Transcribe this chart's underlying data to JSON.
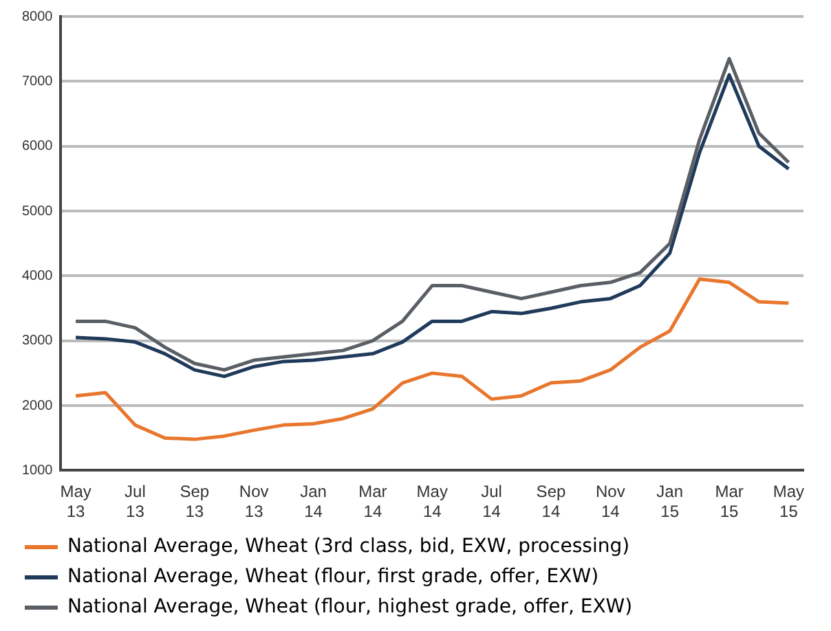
{
  "chart_data": {
    "type": "line",
    "categories": [
      "May 13",
      null,
      "Jul 13",
      null,
      "Sep 13",
      null,
      "Nov 13",
      null,
      "Jan 14",
      null,
      "Mar 14",
      null,
      "May 14",
      null,
      "Jul 14",
      null,
      "Sep 14",
      null,
      "Nov 14",
      null,
      "Jan 15",
      null,
      "Mar 15",
      null,
      "May 15"
    ],
    "ylim": [
      1000,
      8000
    ],
    "yticks": [
      1000,
      2000,
      3000,
      4000,
      5000,
      6000,
      7000,
      8000
    ],
    "grid": "y",
    "legend": "bottom",
    "marker": "none",
    "line_style": "solid",
    "series": [
      {
        "name": "National Average, Wheat (3rd class, bid, EXW, processing)",
        "color": "#e8762d",
        "values": [
          2150,
          2200,
          1700,
          1500,
          1480,
          1530,
          1620,
          1700,
          1720,
          1800,
          1950,
          2350,
          2500,
          2450,
          2100,
          2150,
          2350,
          2380,
          2550,
          2900,
          3150,
          3950,
          3900,
          3600,
          3580
        ]
      },
      {
        "name": "National Average, Wheat (flour, first grade, offer, EXW)",
        "color": "#1f3a5a",
        "values": [
          3050,
          3030,
          2980,
          2800,
          2550,
          2450,
          2600,
          2680,
          2700,
          2750,
          2800,
          2980,
          3300,
          3300,
          3450,
          3420,
          3500,
          3600,
          3650,
          3850,
          4350,
          5900,
          7100,
          6000,
          5650
        ]
      },
      {
        "name": "National Average, Wheat (flour, highest grade, offer, EXW)",
        "color": "#5a5f66",
        "values": [
          3300,
          3300,
          3200,
          2900,
          2650,
          2550,
          2700,
          2750,
          2800,
          2850,
          3000,
          3300,
          3850,
          3850,
          3750,
          3650,
          3750,
          3850,
          3900,
          4050,
          4500,
          6100,
          7350,
          6200,
          5750
        ]
      }
    ]
  }
}
